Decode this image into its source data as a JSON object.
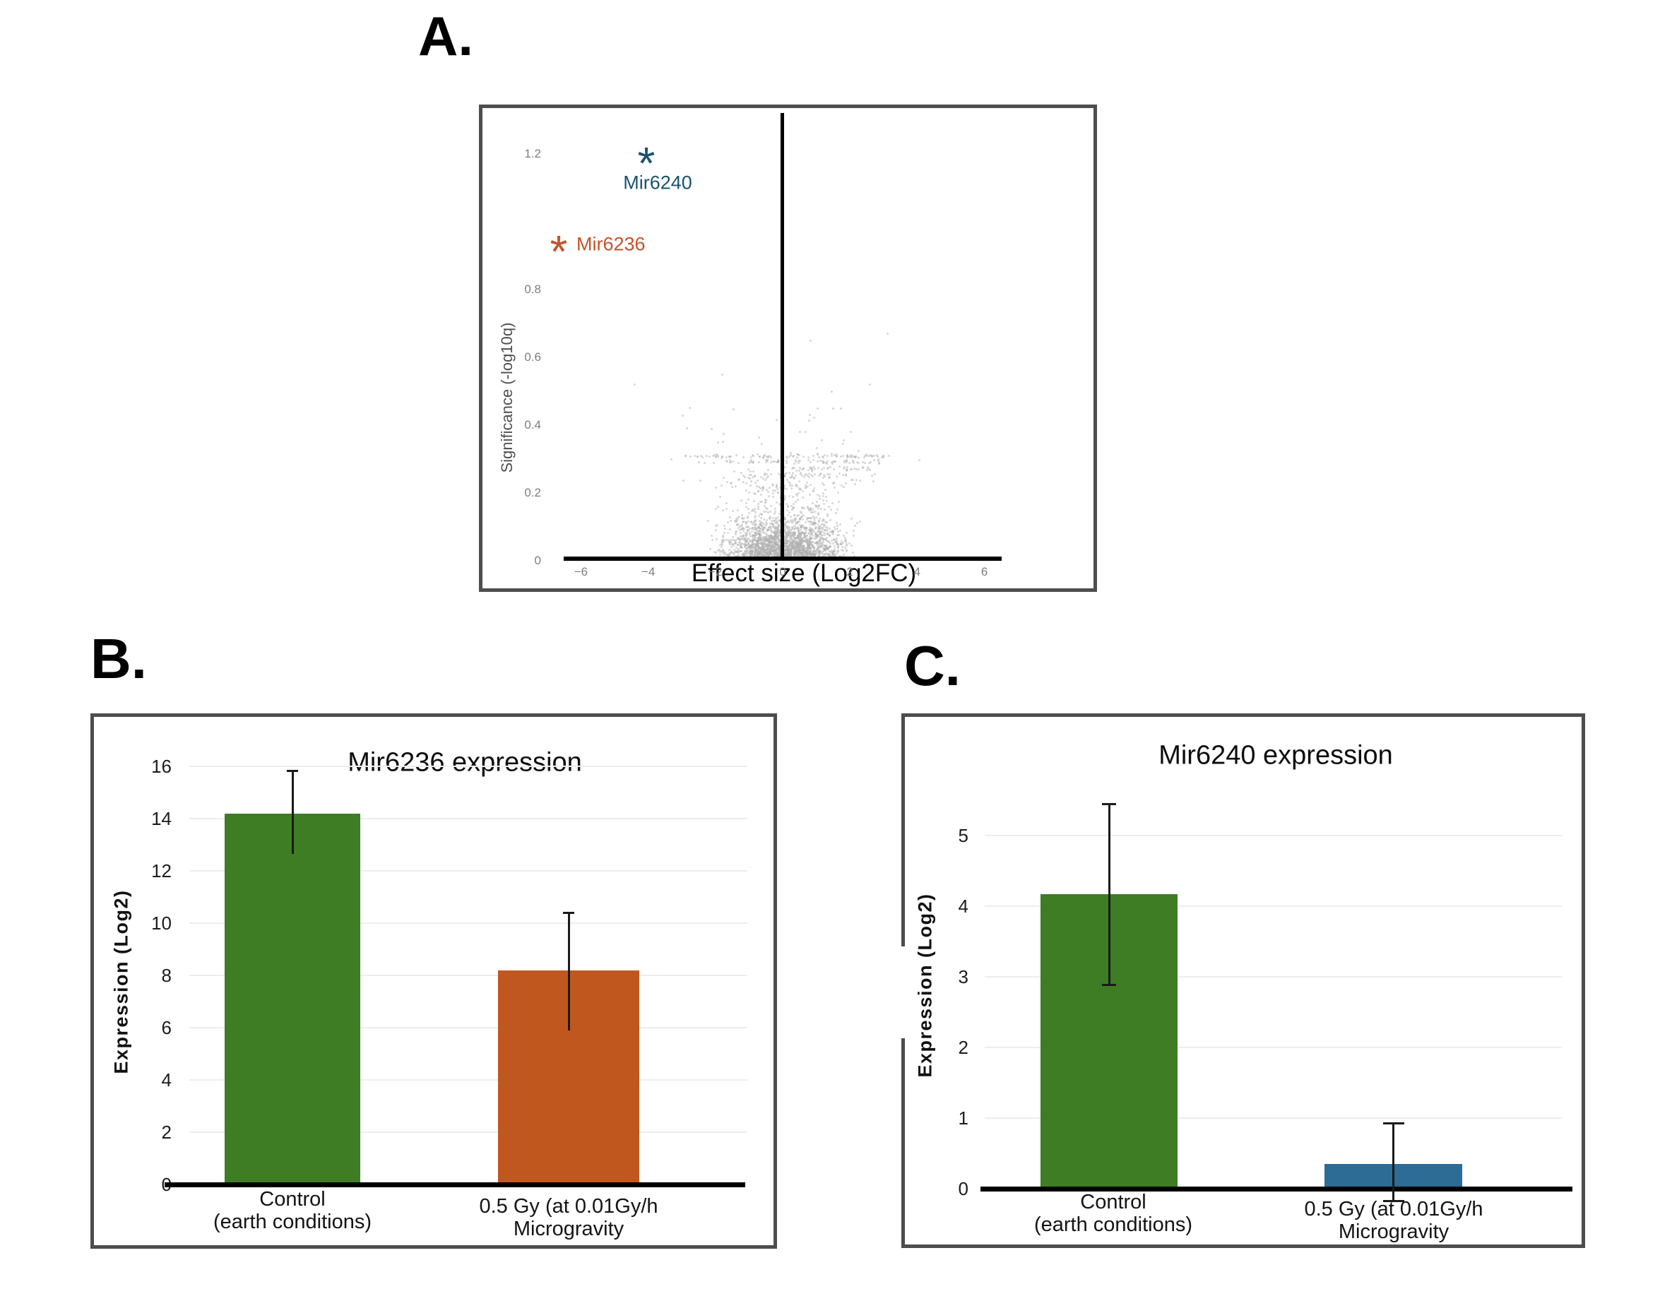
{
  "figure_type": "scientific-three-panel-figure",
  "chart_data": [
    {
      "id": "volcano",
      "type": "scatter",
      "panel_label": "A.",
      "title": "",
      "xlabel": "Effect size (Log2FC)",
      "ylabel": "Significance (-log10q)",
      "xlim": [
        -6.6,
        6.6
      ],
      "ylim": [
        0,
        1.33
      ],
      "grid": false,
      "x_tick_values": [
        -6,
        -4,
        -2,
        0,
        2,
        4,
        6
      ],
      "x_tick_labels": [
        "−6",
        "−4",
        "−2",
        "0",
        "2",
        "4",
        "6"
      ],
      "y_tick_values": [
        1.2,
        0.8,
        0.6,
        0.4,
        0.2,
        0
      ],
      "y_tick_labels": [
        "1.2",
        "0.8",
        "0.6",
        "0.4",
        "0.2",
        "0"
      ],
      "axis_color": "#000000",
      "tick_color": "#7d7d7d",
      "highlighted_points": [
        {
          "name": "Mir6240",
          "marker": "*",
          "x": -4.05,
          "y": 1.21,
          "label_x": -3.72,
          "label_y": 1.115,
          "color": "#1a536e"
        },
        {
          "name": "Mir6236",
          "marker": "*",
          "x": -6.65,
          "y": 0.95,
          "label_x": -6.13,
          "label_y": 0.935,
          "color": "#c4532a"
        }
      ],
      "background_cloud": {
        "description": "dense cloud of non-significant transcripts",
        "point_color": "rgba(176,176,176,0.5)",
        "point_size": 3,
        "seed": 42,
        "clusters": [
          {
            "n": 1500,
            "x": {
              "type": "gauss",
              "mu": 0,
              "sigma": 0.78,
              "clip": [
                -2.35,
                2.35
              ]
            },
            "y": {
              "type": "halfgauss",
              "sigma": 0.052,
              "offset": 0.002,
              "clip": [
                0,
                0.26
              ]
            }
          },
          {
            "n": 650,
            "x": {
              "type": "gauss",
              "mu": 0,
              "sigma": 0.82,
              "clip": [
                -2.35,
                2.35
              ]
            },
            "y": {
              "type": "powuniform",
              "max": 0.26,
              "pow": 2.1
            }
          },
          {
            "n": 300,
            "x": {
              "type": "gauss",
              "mu": 0.9,
              "sigma": 0.5,
              "clip": [
                0.04,
                2.3
              ]
            },
            "y": {
              "type": "halfgauss",
              "sigma": 0.08,
              "offset": 0,
              "clip": [
                0,
                0.26
              ]
            }
          },
          {
            "n": 210,
            "x": {
              "type": "gauss",
              "mu": -0.9,
              "sigma": 0.45,
              "clip": [
                -2.3,
                -0.04
              ]
            },
            "y": {
              "type": "halfgauss",
              "sigma": 0.075,
              "offset": 0,
              "clip": [
                0,
                0.26
              ]
            }
          },
          {
            "n": 95,
            "x": {
              "type": "mixuniform",
              "ranges": [
                [
                  -2.9,
                  -0.1,
                  0.42
                ],
                [
                  0.1,
                  3.1,
                  0.58
                ]
              ]
            },
            "y": {
              "type": "gauss",
              "mu": 0.308,
              "sigma": 0.003,
              "clip": [
                0.3,
                0.316
              ]
            }
          },
          {
            "n": 75,
            "x": {
              "type": "mixuniform",
              "ranges": [
                [
                  -2.6,
                  -0.1,
                  0.4
                ],
                [
                  0.1,
                  2.9,
                  0.6
                ]
              ]
            },
            "y": {
              "type": "gauss",
              "mu": 0.292,
              "sigma": 0.003,
              "clip": [
                0.284,
                0.3
              ]
            }
          },
          {
            "n": 42,
            "x": {
              "type": "uniform",
              "min": 0.05,
              "max": 2.6
            },
            "y": {
              "type": "gauss",
              "mu": 0.272,
              "sigma": 0.0035,
              "clip": [
                0.264,
                0.28
              ]
            }
          },
          {
            "n": 26,
            "x": {
              "type": "uniform",
              "min": -1.6,
              "max": 2.2
            },
            "y": {
              "type": "gauss",
              "mu": 0.254,
              "sigma": 0.003,
              "clip": [
                0.247,
                0.261
              ]
            }
          },
          {
            "n": 55,
            "x": {
              "type": "gauss",
              "mu": 0.2,
              "sigma": 1.3,
              "clip": [
                -3.2,
                3.6
              ]
            },
            "y": {
              "type": "uniform",
              "min": 0.2,
              "max": 0.27
            }
          },
          {
            "n": 18,
            "x": {
              "type": "gauss",
              "mu": 0.3,
              "sigma": 1.5,
              "clip": [
                -3.4,
                4.15
              ]
            },
            "y": {
              "type": "uniform",
              "min": 0.31,
              "max": 0.44
            }
          }
        ]
      },
      "outlier_points": [
        [
          -4.4,
          0.52
        ],
        [
          -1.8,
          0.55
        ],
        [
          -2.76,
          0.452
        ],
        [
          -1.47,
          0.447
        ],
        [
          0.82,
          0.65
        ],
        [
          3.13,
          0.67
        ],
        [
          1.47,
          0.5
        ],
        [
          1.05,
          0.45
        ],
        [
          1.5,
          0.45
        ],
        [
          1.73,
          0.45
        ],
        [
          0.69,
          0.38
        ],
        [
          2.03,
          0.38
        ],
        [
          1.81,
          0.356
        ],
        [
          -1.76,
          0.373
        ],
        [
          -1.78,
          0.352
        ],
        [
          4.07,
          0.296
        ],
        [
          3.17,
          0.31
        ],
        [
          -3.3,
          0.3
        ],
        [
          2.6,
          0.52
        ]
      ]
    },
    {
      "id": "mir6236-bars",
      "type": "bar",
      "panel_label": "B.",
      "title": "Mir6236 expression",
      "ylabel": "Expression (Log2)",
      "categories": [
        [
          "Control",
          "(earth conditions)"
        ],
        [
          "0.5 Gy (at 0.01Gy/h",
          "Microgravity"
        ]
      ],
      "values": [
        14.2,
        8.2
      ],
      "error_up": [
        1.65,
        2.2
      ],
      "error_down": [
        1.55,
        2.3
      ],
      "bar_colors": [
        "#3e7d23",
        "#bf571f"
      ],
      "y_tick_values": [
        0,
        2,
        4,
        6,
        8,
        10,
        12,
        14,
        16
      ],
      "ylim": [
        0,
        16.6
      ],
      "grid": true,
      "grid_color": "#ededed",
      "axis_color": "#000000",
      "error_color": "#1a1a1a",
      "tick_color": "#1c1c1c"
    },
    {
      "id": "mir6240-bars",
      "type": "bar",
      "panel_label": "C.",
      "title": "Mir6240 expression",
      "ylabel": "Expression (Log2)",
      "categories": [
        [
          "Control",
          "(earth conditions)"
        ],
        [
          "0.5 Gy (at 0.01Gy/h",
          "Microgravity"
        ]
      ],
      "values": [
        4.17,
        0.35
      ],
      "error_up": [
        1.28,
        0.58
      ],
      "error_down": [
        1.29,
        0.53
      ],
      "bar_colors": [
        "#3e7d23",
        "#2d6c95"
      ],
      "y_tick_values": [
        0,
        1,
        2,
        3,
        4,
        5
      ],
      "ylim": [
        0,
        5.6
      ],
      "grid": true,
      "grid_color": "#ededed",
      "axis_color": "#000000",
      "error_color": "#1a1a1a",
      "tick_color": "#1c1c1c"
    }
  ]
}
